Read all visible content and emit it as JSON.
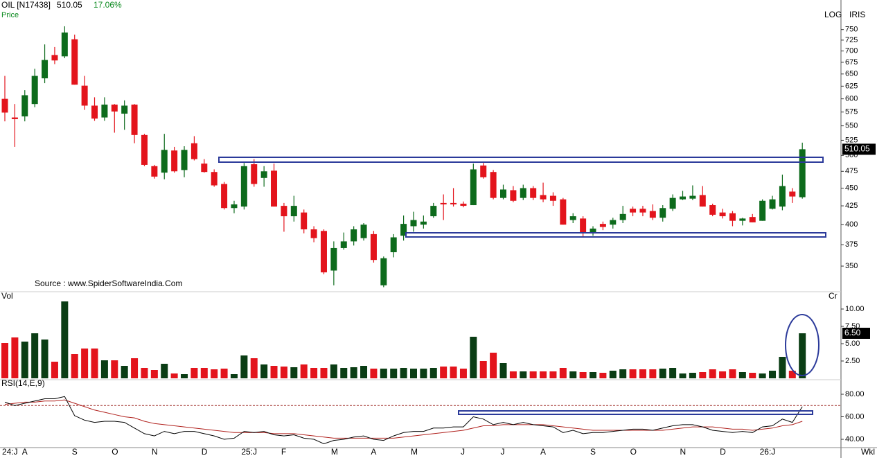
{
  "header": {
    "symbol": "OIL [N17438]",
    "change": "17.06%",
    "price_label": "Price",
    "scale": "LOG",
    "indicator": "IRIS",
    "source": "Source : www.SpiderSoftwareIndia.Com",
    "period": "Wkl"
  },
  "chart_data": [
    {
      "type": "candlestick",
      "categories": [
        "24:J",
        null,
        "A",
        null,
        null,
        null,
        null,
        "S",
        null,
        null,
        null,
        "O",
        null,
        null,
        null,
        "N",
        null,
        null,
        null,
        null,
        "D",
        null,
        null,
        null,
        "25:J",
        null,
        null,
        null,
        "F",
        null,
        null,
        null,
        null,
        "M",
        null,
        null,
        null,
        "A",
        null,
        null,
        null,
        "M",
        null,
        null,
        null,
        null,
        "J",
        null,
        null,
        null,
        "J",
        null,
        null,
        null,
        "A",
        null,
        null,
        null,
        null,
        "S",
        null,
        null,
        null,
        "O",
        null,
        null,
        null,
        null,
        "N",
        null,
        null,
        null,
        "D",
        null,
        null,
        null,
        "26:J",
        null,
        null,
        null,
        null
      ],
      "open": [
        600,
        565,
        567,
        590,
        641,
        691,
        688,
        727,
        626,
        587,
        565,
        589,
        572,
        589,
        534,
        483,
        473,
        508,
        477,
        520,
        487,
        474,
        456,
        422,
        424,
        486,
        465,
        476,
        425,
        411,
        416,
        394,
        392,
        345,
        371,
        379,
        383,
        388,
        329,
        366,
        386,
        398,
        400,
        411,
        429,
        429,
        428,
        426,
        484,
        474,
        436,
        447,
        436,
        450,
        440,
        439,
        434,
        406,
        408,
        389,
        401,
        400,
        406,
        421,
        421,
        418,
        409,
        421,
        434,
        435,
        440,
        426,
        416,
        415,
        405,
        410,
        405,
        421,
        424,
        445,
        437
      ],
      "high": [
        646,
        590,
        617,
        661,
        715,
        709,
        758,
        738,
        646,
        603,
        603,
        590,
        597,
        590,
        536,
        485,
        536,
        514,
        515,
        532,
        494,
        478,
        459,
        432,
        488,
        494,
        483,
        487,
        429,
        439,
        420,
        398,
        394,
        379,
        390,
        398,
        402,
        392,
        361,
        388,
        412,
        417,
        412,
        429,
        441,
        450,
        431,
        487,
        488,
        477,
        455,
        453,
        455,
        453,
        458,
        444,
        436,
        415,
        411,
        398,
        404,
        409,
        425,
        424,
        425,
        427,
        426,
        441,
        446,
        454,
        453,
        428,
        421,
        418,
        409,
        414,
        434,
        439,
        470,
        450,
        521
      ],
      "low": [
        558,
        514,
        558,
        584,
        631,
        671,
        684,
        628,
        579,
        559,
        559,
        538,
        543,
        520,
        483,
        464,
        463,
        473,
        466,
        492,
        473,
        452,
        420,
        415,
        420,
        452,
        452,
        424,
        391,
        404,
        389,
        378,
        341,
        329,
        369,
        374,
        380,
        354,
        327,
        360,
        380,
        391,
        395,
        409,
        406,
        424,
        423,
        426,
        464,
        434,
        434,
        430,
        433,
        433,
        430,
        425,
        400,
        402,
        384,
        386,
        393,
        395,
        402,
        411,
        411,
        406,
        404,
        418,
        433,
        433,
        424,
        411,
        408,
        398,
        399,
        403,
        405,
        420,
        419,
        429,
        435
      ],
      "close": [
        574,
        562,
        607,
        646,
        680,
        679,
        743,
        628,
        587,
        563,
        589,
        576,
        587,
        534,
        485,
        467,
        509,
        475,
        509,
        494,
        474,
        454,
        422,
        427,
        483,
        456,
        475,
        424,
        411,
        425,
        394,
        383,
        343,
        371,
        379,
        394,
        400,
        357,
        359,
        384,
        401,
        406,
        404,
        425,
        427,
        427,
        425,
        478,
        466,
        436,
        448,
        432,
        450,
        436,
        434,
        432,
        400,
        411,
        389,
        395,
        397,
        406,
        414,
        416,
        416,
        409,
        422,
        436,
        438,
        439,
        424,
        413,
        411,
        405,
        408,
        403,
        432,
        434,
        453,
        438,
        510.05
      ],
      "up_color": "#0d6b1c",
      "down_color": "#e3141c",
      "log_scale": true,
      "ylim": [
        323,
        763
      ],
      "yticks": [
        350,
        375,
        400,
        425,
        450,
        475,
        500,
        525,
        550,
        575,
        600,
        625,
        650,
        675,
        700,
        725,
        750
      ]
    },
    {
      "type": "bar",
      "title": "Vol",
      "unit": "Cr",
      "values": [
        5.1,
        5.9,
        5.3,
        6.5,
        5.6,
        2.4,
        11.1,
        3.5,
        4.3,
        4.3,
        2.6,
        2.6,
        1.8,
        2.9,
        1.5,
        1.2,
        2.1,
        0.7,
        0.6,
        1.5,
        1.5,
        1.3,
        1.4,
        0.6,
        3.3,
        2.9,
        2.0,
        1.8,
        1.7,
        1.6,
        2.0,
        1.5,
        1.5,
        2.0,
        1.5,
        1.6,
        1.8,
        1.4,
        1.4,
        1.4,
        1.5,
        1.4,
        1.4,
        1.5,
        1.7,
        1.7,
        1.4,
        6.0,
        2.5,
        3.7,
        2.2,
        1.0,
        1.0,
        1.0,
        1.0,
        1.0,
        1.5,
        1.0,
        0.9,
        0.9,
        0.8,
        1.1,
        1.3,
        1.3,
        1.3,
        1.3,
        1.4,
        1.5,
        0.7,
        0.8,
        0.9,
        1.3,
        1.0,
        1.3,
        0.9,
        0.8,
        0.7,
        1.1,
        3.1,
        1.1,
        6.5
      ],
      "last_value_label": "6.50",
      "up_color": "#0a3d14",
      "down_color": "#e3141c",
      "ylim": [
        0,
        11.2
      ],
      "yticks": [
        {
          "value": 2.5,
          "label": "2.50"
        },
        {
          "value": 5,
          "label": "5.00"
        },
        {
          "value": 7.5,
          "label": "7.50"
        },
        {
          "value": 10,
          "label": "10.00"
        }
      ]
    },
    {
      "type": "line",
      "title": "RSI(14,E,9)",
      "series": [
        {
          "color": "#000000",
          "values": [
            73,
            70,
            72,
            74,
            76,
            76,
            78,
            61,
            57,
            55,
            56,
            56,
            55,
            50,
            45,
            43,
            47,
            45,
            47,
            47,
            45,
            43,
            40,
            41,
            47,
            46,
            47,
            44,
            43,
            44,
            41,
            40,
            36,
            39,
            40,
            42,
            43,
            40,
            39,
            43,
            46,
            47,
            47,
            50,
            50,
            51,
            51,
            60,
            58,
            53,
            55,
            53,
            55,
            53,
            52,
            51,
            46,
            48,
            45,
            46,
            46,
            47,
            48,
            49,
            49,
            48,
            50,
            52,
            53,
            53,
            51,
            48,
            47,
            46,
            47,
            46,
            51,
            52,
            58,
            55,
            69
          ]
        },
        {
          "color": "#b0201c",
          "values": [
            71,
            72,
            73,
            73,
            74,
            74,
            75,
            72,
            69,
            66,
            64,
            62,
            60,
            59,
            56,
            54,
            53,
            52,
            51,
            50,
            49,
            48,
            47,
            46,
            46,
            46,
            46,
            45,
            45,
            45,
            44,
            43,
            42,
            41,
            41,
            41,
            41,
            41,
            41,
            41,
            42,
            43,
            44,
            45,
            46,
            47,
            48,
            50,
            52,
            52,
            53,
            53,
            53,
            53,
            53,
            52,
            51,
            50,
            49,
            48,
            48,
            48,
            48,
            48,
            48,
            48,
            48,
            49,
            50,
            51,
            51,
            51,
            50,
            49,
            49,
            48,
            49,
            50,
            52,
            53,
            56
          ]
        }
      ],
      "level": 70,
      "ylim": [
        33,
        88
      ],
      "yticks": [
        {
          "value": 40,
          "label": "40.00"
        },
        {
          "value": 60,
          "label": "60.00"
        },
        {
          "value": 80,
          "label": "80.00"
        }
      ]
    }
  ]
}
